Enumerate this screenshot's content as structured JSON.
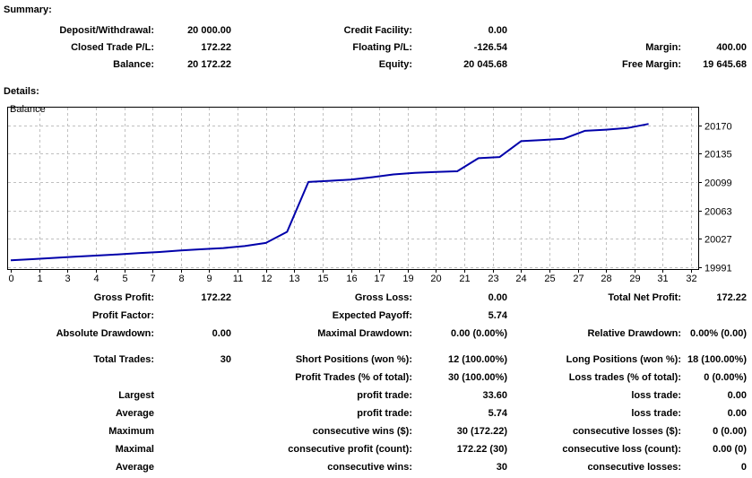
{
  "summary": {
    "heading": "Summary:",
    "rows": [
      [
        {
          "label": "Deposit/Withdrawal:",
          "value": "20 000.00"
        },
        {
          "label": "Credit Facility:",
          "value": "0.00"
        },
        {
          "label": "",
          "value": ""
        }
      ],
      [
        {
          "label": "Closed Trade P/L:",
          "value": "172.22"
        },
        {
          "label": "Floating P/L:",
          "value": "-126.54"
        },
        {
          "label": "Margin:",
          "value": "400.00"
        }
      ],
      [
        {
          "label": "Balance:",
          "value": "20 172.22"
        },
        {
          "label": "Equity:",
          "value": "20 045.68"
        },
        {
          "label": "Free Margin:",
          "value": "19 645.68"
        }
      ]
    ]
  },
  "details": {
    "heading": "Details:",
    "groups": [
      [
        [
          {
            "label": "Gross Profit:",
            "value": "172.22"
          },
          {
            "label": "Gross Loss:",
            "value": "0.00"
          },
          {
            "label": "Total Net Profit:",
            "value": "172.22"
          }
        ],
        [
          {
            "label": "Profit Factor:",
            "value": ""
          },
          {
            "label": "Expected Payoff:",
            "value": "5.74"
          },
          {
            "label": "",
            "value": ""
          }
        ],
        [
          {
            "label": "Absolute Drawdown:",
            "value": "0.00"
          },
          {
            "label": "Maximal Drawdown:",
            "value": "0.00 (0.00%)"
          },
          {
            "label": "Relative Drawdown:",
            "value": "0.00% (0.00)"
          }
        ]
      ],
      [
        [
          {
            "label": "Total Trades:",
            "value": "30"
          },
          {
            "label": "Short Positions (won %):",
            "value": "12 (100.00%)"
          },
          {
            "label": "Long Positions (won %):",
            "value": "18 (100.00%)"
          }
        ],
        [
          {
            "label": "",
            "value": ""
          },
          {
            "label": "Profit Trades (% of total):",
            "value": "30 (100.00%)"
          },
          {
            "label": "Loss trades (% of total):",
            "value": "0 (0.00%)"
          }
        ]
      ],
      [
        [
          {
            "label": "Largest",
            "value": ""
          },
          {
            "label": "profit trade:",
            "value": "33.60"
          },
          {
            "label": "loss trade:",
            "value": "0.00"
          }
        ],
        [
          {
            "label": "Average",
            "value": ""
          },
          {
            "label": "profit trade:",
            "value": "5.74"
          },
          {
            "label": "loss trade:",
            "value": "0.00"
          }
        ],
        [
          {
            "label": "Maximum",
            "value": ""
          },
          {
            "label": "consecutive wins ($):",
            "value": "30 (172.22)"
          },
          {
            "label": "consecutive losses ($):",
            "value": "0 (0.00)"
          }
        ],
        [
          {
            "label": "Maximal",
            "value": ""
          },
          {
            "label": "consecutive profit (count):",
            "value": "172.22 (30)"
          },
          {
            "label": "consecutive loss (count):",
            "value": "0.00 (0)"
          }
        ],
        [
          {
            "label": "Average",
            "value": ""
          },
          {
            "label": "consecutive wins:",
            "value": "30"
          },
          {
            "label": "consecutive losses:",
            "value": "0"
          }
        ]
      ]
    ]
  },
  "chart_data": {
    "type": "line",
    "title": "Balance",
    "title_position": "top-left",
    "grid": true,
    "grid_color": "#c0c0c0",
    "x": [
      0,
      1,
      2,
      3,
      4,
      5,
      6,
      7,
      8,
      9,
      10,
      11,
      12,
      13,
      14,
      15,
      16,
      17,
      18,
      19,
      20,
      21,
      22,
      23,
      24,
      25,
      26,
      27,
      28,
      29,
      30
    ],
    "series": [
      {
        "name": "Balance",
        "color": "#0000aa",
        "values": [
          20000,
          20001.5,
          20003,
          20004.5,
          20006,
          20007.5,
          20009,
          20010.5,
          20012.5,
          20014,
          20015.5,
          20018,
          20022,
          20036,
          20099,
          20100.5,
          20102,
          20105,
          20108.5,
          20110.5,
          20111.5,
          20112.5,
          20129,
          20130.5,
          20150.5,
          20152,
          20153.5,
          20163.5,
          20165,
          20167,
          20172.22
        ]
      }
    ],
    "x_tick_labels": [
      "0",
      "1",
      "3",
      "4",
      "5",
      "7",
      "8",
      "9",
      "11",
      "12",
      "13",
      "15",
      "16",
      "17",
      "19",
      "20",
      "21",
      "23",
      "24",
      "25",
      "27",
      "28",
      "29",
      "31",
      "32"
    ],
    "y_tick_values": [
      20170,
      20135,
      20099,
      20063,
      20027,
      19991
    ],
    "xlim": [
      0,
      32
    ],
    "ylim": [
      19989,
      20194
    ],
    "legend_position": "none"
  }
}
